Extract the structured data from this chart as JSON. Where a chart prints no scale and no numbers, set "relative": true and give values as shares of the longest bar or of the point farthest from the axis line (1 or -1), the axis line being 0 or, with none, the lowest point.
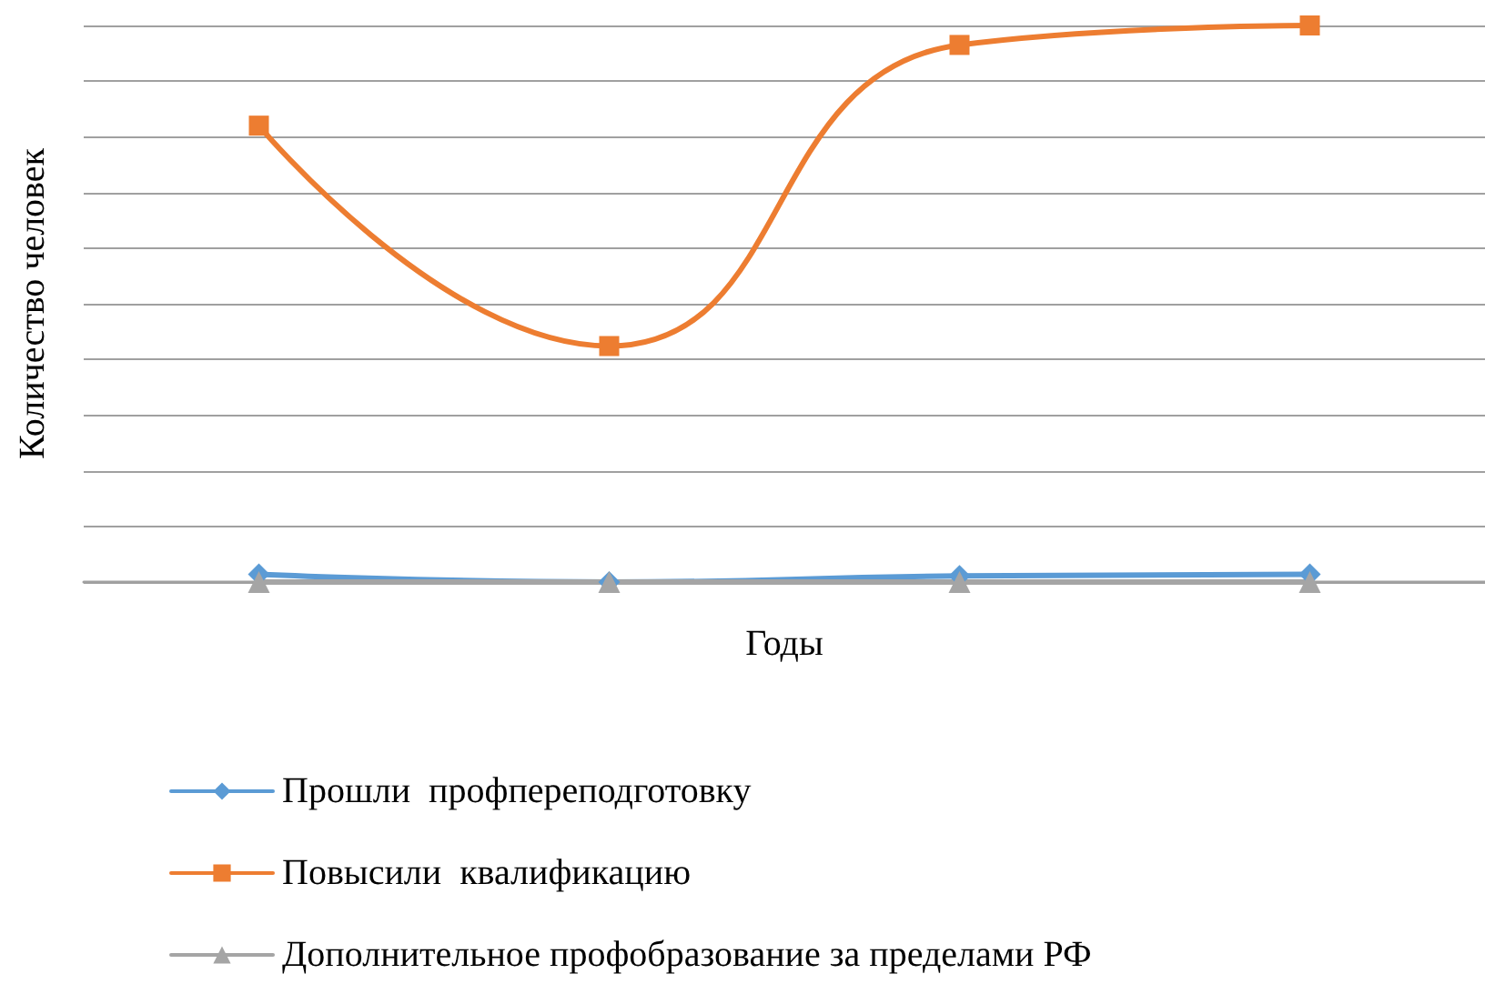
{
  "chart_data": {
    "type": "line",
    "relative": true,
    "xlabel": "Годы",
    "ylabel": "Количество человек",
    "categories": [
      null,
      null,
      null,
      null
    ],
    "series": [
      {
        "name": "Прошли  профпереподготовку",
        "color": "#5b9bd5",
        "marker": "diamond",
        "values": [
          0.014,
          0,
          0.011,
          0.014
        ]
      },
      {
        "name": "Повысили  квалификацию",
        "color": "#ed7d31",
        "marker": "square",
        "values": [
          0.82,
          0.424,
          0.965,
          1
        ]
      },
      {
        "name": "Дополнительное профобразование за пределами РФ",
        "color": "#a5a5a5",
        "marker": "triangle",
        "values": [
          0,
          0,
          0,
          0
        ]
      }
    ],
    "grid": "y",
    "legend": "bottom"
  }
}
